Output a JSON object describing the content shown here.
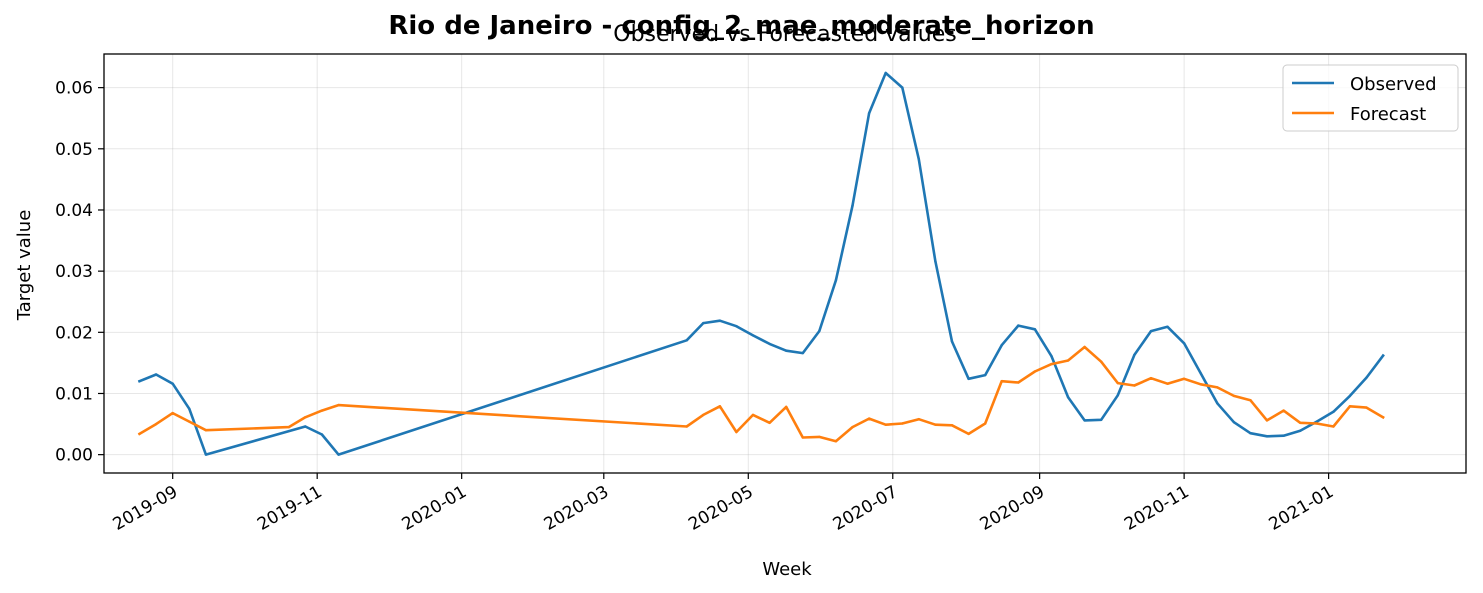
{
  "figure": {
    "suptitle": "Rio de Janeiro - config_2_mae_moderate_horizon",
    "title": "Observed vs Forecasted values"
  },
  "chart_data": {
    "type": "line",
    "title": "Observed vs Forecasted values",
    "xlabel": "Week",
    "ylabel": "Target value",
    "x_tick_labels": [
      "2019-09",
      "2019-11",
      "2020-01",
      "2020-03",
      "2020-05",
      "2020-07",
      "2020-09",
      "2020-11",
      "2021-01"
    ],
    "y_tick_labels": [
      "0.00",
      "0.01",
      "0.02",
      "0.03",
      "0.04",
      "0.05",
      "0.06"
    ],
    "ylim": [
      -0.003,
      0.0655
    ],
    "xlim": [
      "2019-08-03",
      "2021-02-28"
    ],
    "grid": true,
    "legend_position": "upper right",
    "series": [
      {
        "name": "Observed",
        "color": "#1f77b4",
        "points": [
          [
            "2019-08-18",
            0.012
          ],
          [
            "2019-08-25",
            0.0131
          ],
          [
            "2019-09-01",
            0.0116
          ],
          [
            "2019-09-08",
            0.0075
          ],
          [
            "2019-09-15",
            0.0
          ],
          [
            "2019-10-27",
            0.0046
          ],
          [
            "2019-11-03",
            0.0033
          ],
          [
            "2019-11-10",
            0.0
          ],
          [
            "2020-04-05",
            0.0187
          ],
          [
            "2020-04-12",
            0.0215
          ],
          [
            "2020-04-19",
            0.0219
          ],
          [
            "2020-04-26",
            0.021
          ],
          [
            "2020-05-03",
            0.0195
          ],
          [
            "2020-05-10",
            0.0181
          ],
          [
            "2020-05-17",
            0.017
          ],
          [
            "2020-05-24",
            0.0166
          ],
          [
            "2020-05-31",
            0.0202
          ],
          [
            "2020-06-07",
            0.0285
          ],
          [
            "2020-06-14",
            0.0407
          ],
          [
            "2020-06-21",
            0.0558
          ],
          [
            "2020-06-28",
            0.0624
          ],
          [
            "2020-07-05",
            0.06
          ],
          [
            "2020-07-12",
            0.0483
          ],
          [
            "2020-07-19",
            0.0316
          ],
          [
            "2020-07-26",
            0.0185
          ],
          [
            "2020-08-02",
            0.0124
          ],
          [
            "2020-08-09",
            0.013
          ],
          [
            "2020-08-16",
            0.0179
          ],
          [
            "2020-08-23",
            0.0211
          ],
          [
            "2020-08-30",
            0.0205
          ],
          [
            "2020-09-06",
            0.0161
          ],
          [
            "2020-09-13",
            0.0094
          ],
          [
            "2020-09-20",
            0.0056
          ],
          [
            "2020-09-27",
            0.0057
          ],
          [
            "2020-10-04",
            0.0097
          ],
          [
            "2020-10-11",
            0.0163
          ],
          [
            "2020-10-18",
            0.0202
          ],
          [
            "2020-10-25",
            0.0209
          ],
          [
            "2020-11-01",
            0.0182
          ],
          [
            "2020-11-08",
            0.0133
          ],
          [
            "2020-11-15",
            0.0084
          ],
          [
            "2020-11-22",
            0.0053
          ],
          [
            "2020-11-29",
            0.0035
          ],
          [
            "2020-12-06",
            0.003
          ],
          [
            "2020-12-13",
            0.0031
          ],
          [
            "2020-12-20",
            0.0039
          ],
          [
            "2020-12-27",
            0.0054
          ],
          [
            "2021-01-03",
            0.007
          ],
          [
            "2021-01-10",
            0.0096
          ],
          [
            "2021-01-17",
            0.0126
          ],
          [
            "2021-01-24",
            0.0162
          ]
        ]
      },
      {
        "name": "Forecast",
        "color": "#ff7f0e",
        "points": [
          [
            "2019-08-18",
            0.0034
          ],
          [
            "2019-08-25",
            0.005
          ],
          [
            "2019-09-01",
            0.0068
          ],
          [
            "2019-09-08",
            0.0054
          ],
          [
            "2019-09-15",
            0.004
          ],
          [
            "2019-10-20",
            0.0045
          ],
          [
            "2019-10-27",
            0.0061
          ],
          [
            "2019-11-03",
            0.0072
          ],
          [
            "2019-11-10",
            0.0081
          ],
          [
            "2020-04-05",
            0.0046
          ],
          [
            "2020-04-12",
            0.0065
          ],
          [
            "2020-04-19",
            0.0079
          ],
          [
            "2020-04-26",
            0.0037
          ],
          [
            "2020-05-03",
            0.0065
          ],
          [
            "2020-05-10",
            0.0052
          ],
          [
            "2020-05-17",
            0.0078
          ],
          [
            "2020-05-24",
            0.0028
          ],
          [
            "2020-05-31",
            0.0029
          ],
          [
            "2020-06-07",
            0.0022
          ],
          [
            "2020-06-14",
            0.0045
          ],
          [
            "2020-06-21",
            0.0059
          ],
          [
            "2020-06-28",
            0.0049
          ],
          [
            "2020-07-05",
            0.0051
          ],
          [
            "2020-07-12",
            0.0058
          ],
          [
            "2020-07-19",
            0.0049
          ],
          [
            "2020-07-26",
            0.0048
          ],
          [
            "2020-08-02",
            0.0034
          ],
          [
            "2020-08-09",
            0.0051
          ],
          [
            "2020-08-16",
            0.012
          ],
          [
            "2020-08-23",
            0.0118
          ],
          [
            "2020-08-30",
            0.0136
          ],
          [
            "2020-09-06",
            0.0148
          ],
          [
            "2020-09-13",
            0.0154
          ],
          [
            "2020-09-20",
            0.0176
          ],
          [
            "2020-09-27",
            0.0152
          ],
          [
            "2020-10-04",
            0.0117
          ],
          [
            "2020-10-11",
            0.0113
          ],
          [
            "2020-10-18",
            0.0125
          ],
          [
            "2020-10-25",
            0.0116
          ],
          [
            "2020-11-01",
            0.0124
          ],
          [
            "2020-11-08",
            0.0115
          ],
          [
            "2020-11-15",
            0.011
          ],
          [
            "2020-11-22",
            0.0096
          ],
          [
            "2020-11-29",
            0.0089
          ],
          [
            "2020-12-06",
            0.0056
          ],
          [
            "2020-12-13",
            0.0072
          ],
          [
            "2020-12-20",
            0.0052
          ],
          [
            "2020-12-27",
            0.0051
          ],
          [
            "2021-01-03",
            0.0046
          ],
          [
            "2021-01-10",
            0.0079
          ],
          [
            "2021-01-17",
            0.0077
          ],
          [
            "2021-01-24",
            0.0061
          ]
        ]
      }
    ]
  }
}
